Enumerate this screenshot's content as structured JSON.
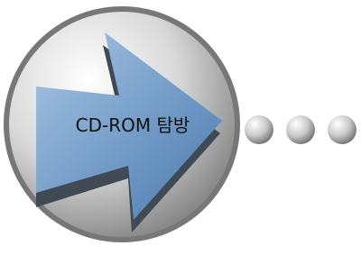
{
  "badge": {
    "label": "CD-ROM 탐방"
  }
}
